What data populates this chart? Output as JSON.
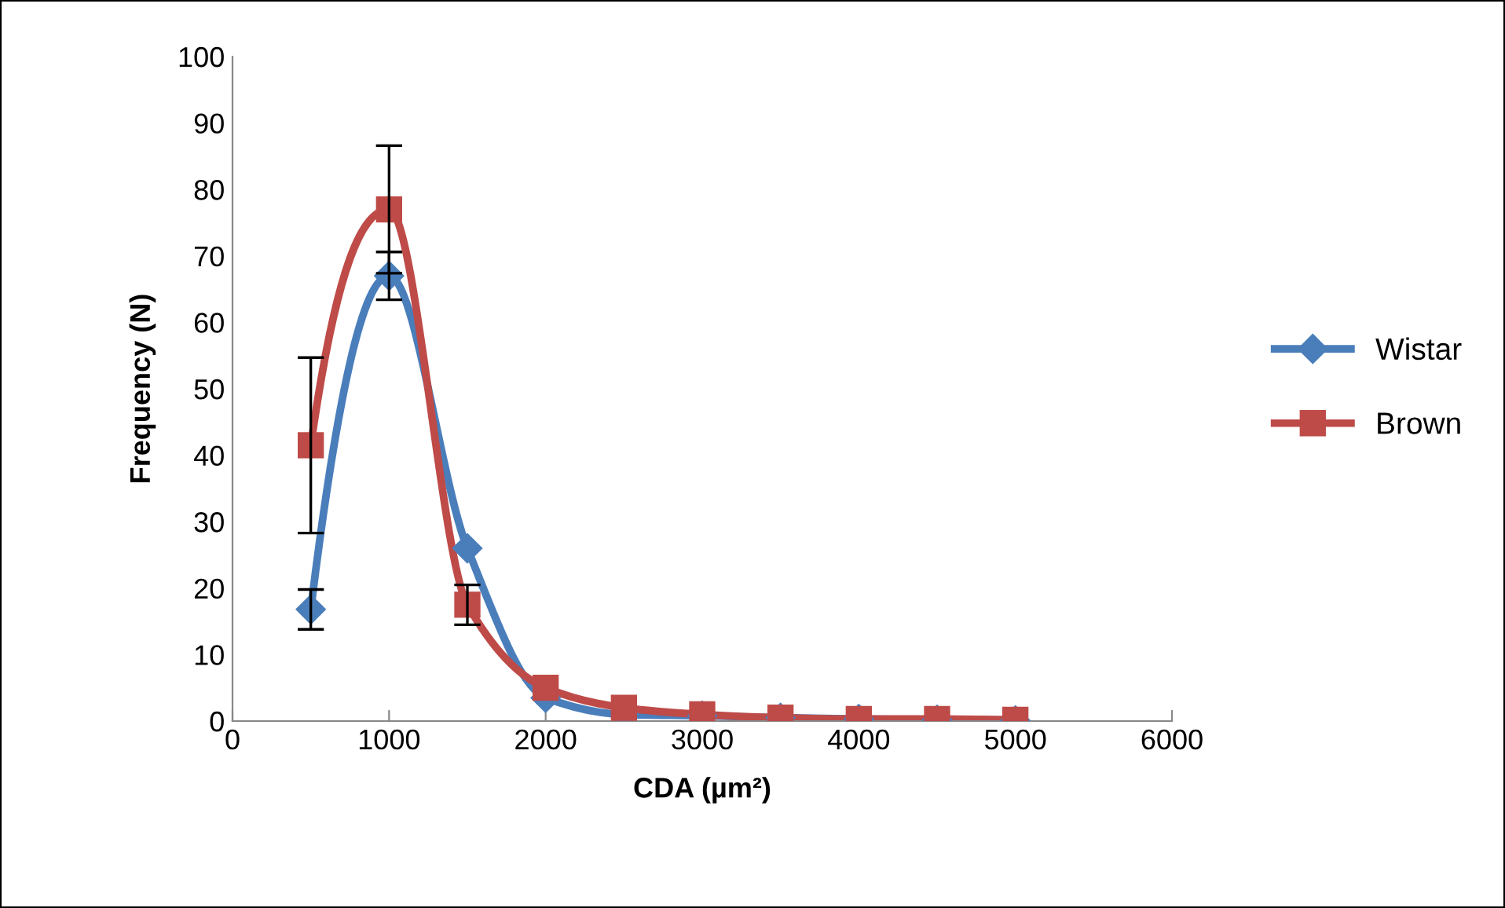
{
  "chart_data": {
    "type": "line",
    "xlabel": "CDA (µm²)",
    "ylabel": "Frequency (N)",
    "x": [
      500,
      1000,
      1500,
      2000,
      2500,
      3000,
      3500,
      4000,
      4500,
      5000
    ],
    "series": [
      {
        "name": "Wistar",
        "color": "#4a7ebb",
        "marker": "diamond",
        "values": [
          16.8,
          67,
          26,
          3.5,
          1,
          0.8,
          0.5,
          0.3,
          0.2,
          0.1
        ],
        "errors": [
          3,
          3.6,
          null,
          null,
          null,
          null,
          null,
          null,
          null,
          null
        ]
      },
      {
        "name": "Brown",
        "color": "#be4b48",
        "marker": "square",
        "values": [
          41.5,
          77,
          17.5,
          5,
          2,
          1,
          0.5,
          0.3,
          0.3,
          0.2
        ],
        "errors": [
          13.2,
          9.6,
          3,
          null,
          null,
          null,
          null,
          null,
          null,
          null
        ]
      }
    ],
    "xlim": [
      0,
      6000
    ],
    "xticks": [
      0,
      1000,
      2000,
      3000,
      4000,
      5000,
      6000
    ],
    "ylim": [
      0,
      100
    ],
    "yticks": [
      0,
      10,
      20,
      30,
      40,
      50,
      60,
      70,
      80,
      90,
      100
    ],
    "grid": false,
    "legend": "right",
    "line_style": "solid"
  }
}
